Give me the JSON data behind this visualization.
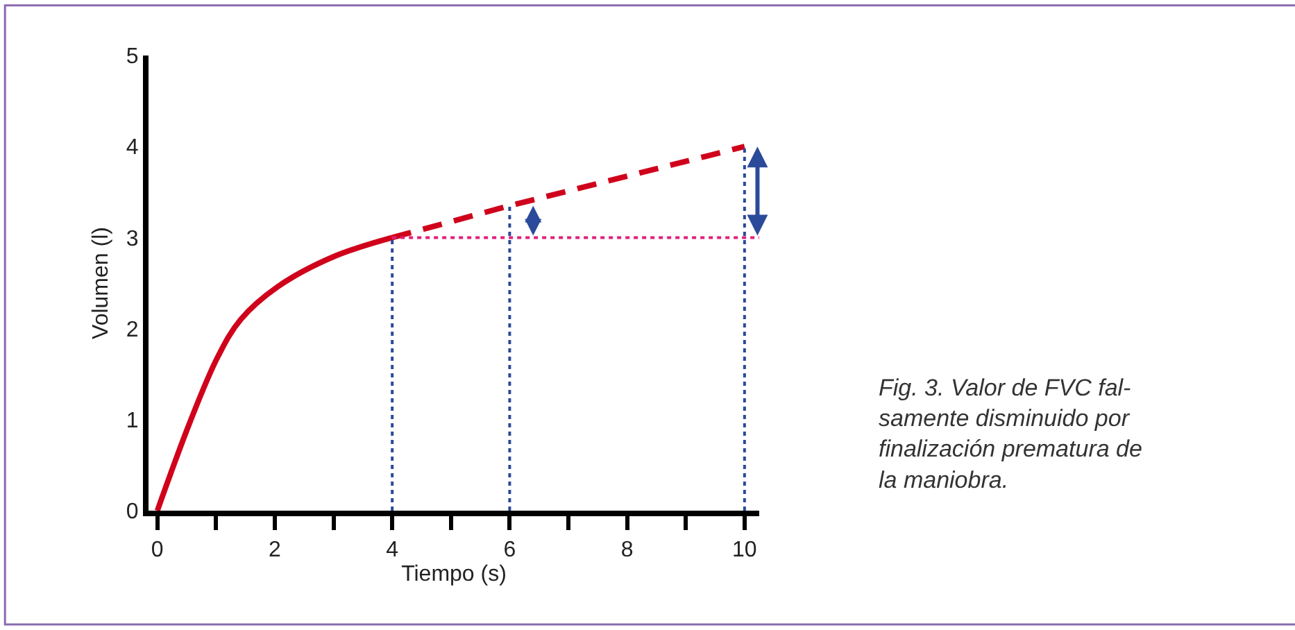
{
  "chart_data": {
    "type": "line",
    "xlabel": "Tiempo (s)",
    "ylabel": "Volumen (l)",
    "xlim": [
      -0.15,
      10.25
    ],
    "ylim": [
      0,
      5
    ],
    "xticks": [
      0,
      {
        "value": 1,
        "label": null
      },
      2,
      {
        "value": 3,
        "label": null
      },
      4,
      {
        "value": 5,
        "label": null
      },
      6,
      {
        "value": 7,
        "label": null
      },
      8,
      {
        "value": 9,
        "label": null
      },
      10
    ],
    "yticks": [
      0,
      1,
      2,
      3,
      4,
      5
    ],
    "marker": "none",
    "series": [
      {
        "color": "#d0021b",
        "line_style": "solid",
        "x": [
          0,
          0.56,
          1.03,
          1.42,
          2.05,
          3.0,
          4.0
        ],
        "values": [
          0,
          0.98,
          1.69,
          2.1,
          2.46,
          2.79,
          3.0
        ]
      },
      {
        "color": "#d0021b",
        "line_style": "dashed",
        "x": [
          4.0,
          6.0,
          10.0
        ],
        "values": [
          3.0,
          3.35,
          4.0
        ]
      }
    ],
    "ref_lines": [
      {
        "axis": "x",
        "value": 4,
        "color": "#2b4a9a",
        "line_style": "dotted"
      },
      {
        "axis": "x",
        "value": 6,
        "color": "#2b4a9a",
        "line_style": "dotted"
      },
      {
        "axis": "x",
        "value": 10,
        "color": "#2b4a9a",
        "line_style": "dotted"
      },
      {
        "axis": "y",
        "value": 3,
        "color": "#e0207a",
        "line_style": "dotted"
      }
    ],
    "annotations": [
      "Fig. 3. Valor de FVC fal-\nsamente disminuido por\nfinalización prematura de\nla maniobra."
    ]
  }
}
